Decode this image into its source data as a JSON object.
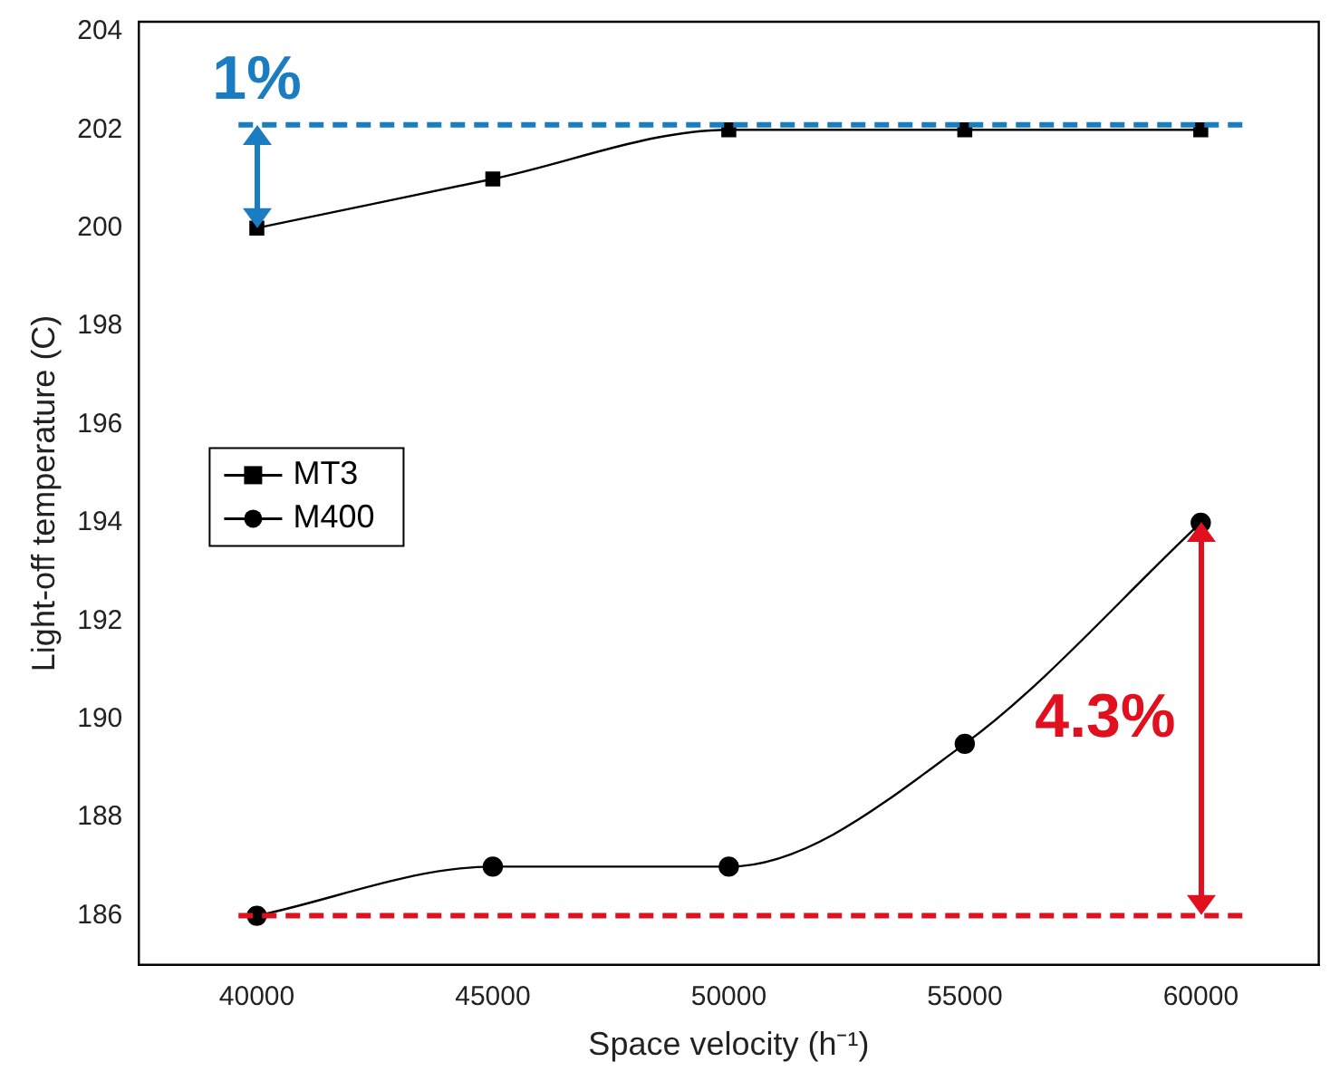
{
  "chart_data": {
    "type": "line",
    "xlabel": "Space velocity (h⁻¹)",
    "ylabel": "Light-off temperature (C)",
    "x": [
      40000,
      45000,
      50000,
      55000,
      60000
    ],
    "series": [
      {
        "name": "MT3",
        "color": "#000000",
        "marker": "square",
        "values": [
          200,
          201,
          202,
          202,
          202
        ]
      },
      {
        "name": "M400",
        "color": "#000000",
        "marker": "circle",
        "values": [
          186,
          187,
          187,
          189.5,
          194
        ]
      }
    ],
    "xlim": [
      37500,
      62500
    ],
    "xticks": [
      40000,
      45000,
      50000,
      55000,
      60000
    ],
    "ylim": [
      185,
      204.2
    ],
    "yticks": [
      186,
      188,
      190,
      192,
      194,
      196,
      198,
      200,
      202,
      204
    ],
    "grid": false,
    "legend": "left",
    "ref_lines": [
      {
        "axis": "y",
        "value": 202.1,
        "color": "#1a7cc1",
        "line_style": "dashed"
      },
      {
        "axis": "y",
        "value": 186,
        "color": "#e0101e",
        "line_style": "dashed"
      }
    ],
    "annotations": [
      "1%",
      "4.3%"
    ]
  }
}
